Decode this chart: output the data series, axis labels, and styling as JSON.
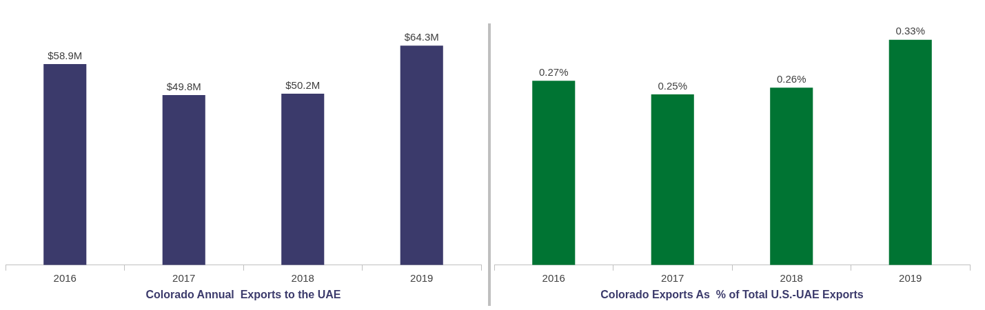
{
  "chart_data": [
    {
      "type": "bar",
      "xlabel": "Colorado Annual  Exports to the UAE",
      "categories": [
        "2016",
        "2017",
        "2018",
        "2019"
      ],
      "values": [
        58.9,
        49.8,
        50.2,
        64.3
      ],
      "color": "#3b3a6b",
      "value_labels": [
        "$58.9M",
        "$49.8M",
        "$50.2M",
        "$64.3M"
      ],
      "grid": false,
      "legend": false
    },
    {
      "type": "bar",
      "xlabel": "Colorado Exports As  % of Total U.S.-UAE Exports",
      "categories": [
        "2016",
        "2017",
        "2018",
        "2019"
      ],
      "values": [
        0.27,
        0.25,
        0.26,
        0.33
      ],
      "color": "#007433",
      "value_labels": [
        "0.27%",
        "0.25%",
        "0.26%",
        "0.33%"
      ],
      "grid": false,
      "legend": false
    }
  ]
}
